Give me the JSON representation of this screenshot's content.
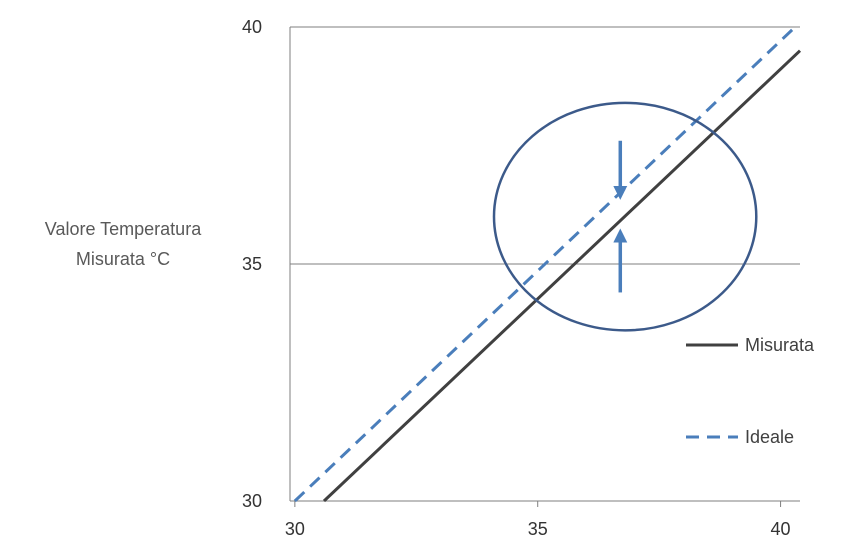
{
  "chart_data": {
    "type": "line",
    "ylabel": "Valore Temperatura\nMisurata °C",
    "xlim": [
      29.9,
      40.4
    ],
    "ylim": [
      30,
      40
    ],
    "x_ticks": [
      30,
      35,
      40
    ],
    "y_ticks": [
      30,
      35,
      40
    ],
    "grid": "horizontal",
    "legend_position": "right",
    "series": [
      {
        "name": "Misurata",
        "style": "solid",
        "color": "#404040",
        "x": [
          30.6,
          40.4
        ],
        "y": [
          30.0,
          39.5
        ]
      },
      {
        "name": "Ideale",
        "style": "dashed",
        "color": "#4a7ebb",
        "x": [
          30.0,
          40.3
        ],
        "y": [
          30.0,
          40.0
        ]
      }
    ],
    "annotations": {
      "ellipse": {
        "cx": 36.8,
        "cy": 36.0,
        "rx": 2.7,
        "ry": 2.4,
        "color": "#3c5a8a"
      },
      "arrows": [
        {
          "x": 36.7,
          "from_y": 37.6,
          "to_y": 36.5,
          "color": "#4a7ebb"
        },
        {
          "x": 36.7,
          "from_y": 34.4,
          "to_y": 35.6,
          "color": "#4a7ebb"
        }
      ]
    }
  }
}
